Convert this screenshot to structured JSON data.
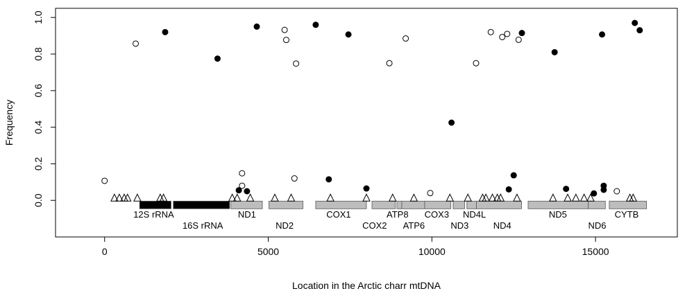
{
  "chart_data": {
    "type": "scatter",
    "title": "",
    "xlabel": "Location in the Arctic charr mtDNA",
    "ylabel": "Frequency",
    "xlim": [
      -1500,
      17500
    ],
    "ylim": [
      -0.2,
      1.05
    ],
    "x_ticks": [
      0,
      5000,
      10000,
      15000
    ],
    "x_tick_labels": [
      "0",
      "5000",
      "10000",
      "15000"
    ],
    "y_ticks": [
      0.0,
      0.2,
      0.4,
      0.6,
      0.8,
      1.0
    ],
    "y_tick_labels": [
      "0.0",
      "0.2",
      "0.4",
      "0.6",
      "0.8",
      "1.0"
    ],
    "grid": false,
    "legend": "none",
    "series": [
      {
        "marker": "filled-circle",
        "points": [
          {
            "x": 1850,
            "y": 0.92
          },
          {
            "x": 3450,
            "y": 0.775
          },
          {
            "x": 4650,
            "y": 0.95
          },
          {
            "x": 6450,
            "y": 0.96
          },
          {
            "x": 7450,
            "y": 0.907
          },
          {
            "x": 10600,
            "y": 0.425
          },
          {
            "x": 12750,
            "y": 0.915
          },
          {
            "x": 13750,
            "y": 0.81
          },
          {
            "x": 15200,
            "y": 0.907
          },
          {
            "x": 16200,
            "y": 0.97
          },
          {
            "x": 16350,
            "y": 0.93
          },
          {
            "x": 4100,
            "y": 0.055
          },
          {
            "x": 4350,
            "y": 0.05
          },
          {
            "x": 6850,
            "y": 0.115
          },
          {
            "x": 8000,
            "y": 0.065
          },
          {
            "x": 12350,
            "y": 0.06
          },
          {
            "x": 12500,
            "y": 0.137
          },
          {
            "x": 14100,
            "y": 0.063
          },
          {
            "x": 14950,
            "y": 0.038
          },
          {
            "x": 15250,
            "y": 0.08
          },
          {
            "x": 15250,
            "y": 0.058
          }
        ]
      },
      {
        "marker": "open-circle",
        "points": [
          {
            "x": 0,
            "y": 0.107
          },
          {
            "x": 950,
            "y": 0.857
          },
          {
            "x": 4200,
            "y": 0.148
          },
          {
            "x": 4200,
            "y": 0.08
          },
          {
            "x": 5500,
            "y": 0.932
          },
          {
            "x": 5550,
            "y": 0.877
          },
          {
            "x": 5800,
            "y": 0.12
          },
          {
            "x": 5850,
            "y": 0.748
          },
          {
            "x": 8700,
            "y": 0.75
          },
          {
            "x": 9200,
            "y": 0.885
          },
          {
            "x": 9950,
            "y": 0.04
          },
          {
            "x": 11350,
            "y": 0.75
          },
          {
            "x": 11800,
            "y": 0.92
          },
          {
            "x": 12150,
            "y": 0.893
          },
          {
            "x": 12300,
            "y": 0.91
          },
          {
            "x": 12650,
            "y": 0.878
          },
          {
            "x": 15650,
            "y": 0.05
          }
        ]
      },
      {
        "marker": "open-triangle",
        "points": [
          {
            "x": 300,
            "y": 0.013
          },
          {
            "x": 450,
            "y": 0.013
          },
          {
            "x": 600,
            "y": 0.013
          },
          {
            "x": 700,
            "y": 0.013
          },
          {
            "x": 1000,
            "y": 0.013
          },
          {
            "x": 1700,
            "y": 0.013
          },
          {
            "x": 1800,
            "y": 0.013
          },
          {
            "x": 3900,
            "y": 0.013
          },
          {
            "x": 4050,
            "y": 0.013
          },
          {
            "x": 4450,
            "y": 0.013
          },
          {
            "x": 5200,
            "y": 0.013
          },
          {
            "x": 5700,
            "y": 0.013
          },
          {
            "x": 6900,
            "y": 0.013
          },
          {
            "x": 8000,
            "y": 0.013
          },
          {
            "x": 8800,
            "y": 0.013
          },
          {
            "x": 9450,
            "y": 0.013
          },
          {
            "x": 10550,
            "y": 0.013
          },
          {
            "x": 11100,
            "y": 0.013
          },
          {
            "x": 11550,
            "y": 0.013
          },
          {
            "x": 11650,
            "y": 0.013
          },
          {
            "x": 11850,
            "y": 0.013
          },
          {
            "x": 12000,
            "y": 0.013
          },
          {
            "x": 12100,
            "y": 0.013
          },
          {
            "x": 12600,
            "y": 0.013
          },
          {
            "x": 13700,
            "y": 0.013
          },
          {
            "x": 14150,
            "y": 0.013
          },
          {
            "x": 14400,
            "y": 0.013
          },
          {
            "x": 14650,
            "y": 0.013
          },
          {
            "x": 14850,
            "y": 0.013
          },
          {
            "x": 16050,
            "y": 0.013
          },
          {
            "x": 16150,
            "y": 0.013
          }
        ]
      }
    ],
    "genome_map": {
      "bar_y": -0.025,
      "segments": [
        {
          "start": 1070,
          "end": 2030,
          "color": "#000000"
        },
        {
          "start": 2100,
          "end": 3820,
          "color": "#000000"
        },
        {
          "start": 3860,
          "end": 4820,
          "color": "#bdbdbd"
        },
        {
          "start": 5020,
          "end": 6060,
          "color": "#bdbdbd"
        },
        {
          "start": 6450,
          "end": 8000,
          "color": "#bdbdbd"
        },
        {
          "start": 8170,
          "end": 8880,
          "color": "#bdbdbd"
        },
        {
          "start": 8930,
          "end": 9080,
          "color": "#bdbdbd"
        },
        {
          "start": 9080,
          "end": 9780,
          "color": "#bdbdbd"
        },
        {
          "start": 9780,
          "end": 10580,
          "color": "#bdbdbd"
        },
        {
          "start": 10650,
          "end": 11000,
          "color": "#bdbdbd"
        },
        {
          "start": 11070,
          "end": 11360,
          "color": "#bdbdbd"
        },
        {
          "start": 11360,
          "end": 12740,
          "color": "#bdbdbd"
        },
        {
          "start": 12940,
          "end": 14780,
          "color": "#bdbdbd"
        },
        {
          "start": 14780,
          "end": 15300,
          "color": "#bdbdbd"
        },
        {
          "start": 15420,
          "end": 16560,
          "color": "#bdbdbd"
        }
      ],
      "labels": [
        {
          "text": "12S rRNA",
          "x": 1500,
          "row": 1
        },
        {
          "text": "16S rRNA",
          "x": 3000,
          "row": 2
        },
        {
          "text": "ND1",
          "x": 4350,
          "row": 1
        },
        {
          "text": "ND2",
          "x": 5500,
          "row": 2
        },
        {
          "text": "COX1",
          "x": 7150,
          "row": 1
        },
        {
          "text": "COX2",
          "x": 8250,
          "row": 2
        },
        {
          "text": "ATP8",
          "x": 8950,
          "row": 1
        },
        {
          "text": "ATP6",
          "x": 9450,
          "row": 2
        },
        {
          "text": "COX3",
          "x": 10150,
          "row": 1
        },
        {
          "text": "ND3",
          "x": 10850,
          "row": 2
        },
        {
          "text": "ND4L",
          "x": 11300,
          "row": 1
        },
        {
          "text": "ND4",
          "x": 12150,
          "row": 2
        },
        {
          "text": "ND5",
          "x": 13850,
          "row": 1
        },
        {
          "text": "ND6",
          "x": 15050,
          "row": 2
        },
        {
          "text": "CYTB",
          "x": 15950,
          "row": 1
        }
      ]
    }
  }
}
